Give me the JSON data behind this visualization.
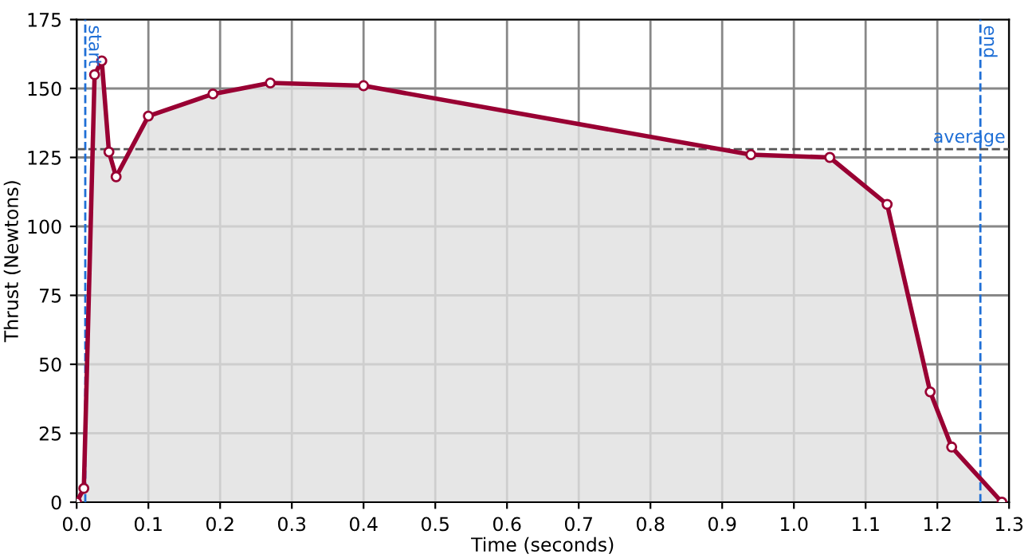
{
  "chart_data": {
    "type": "area",
    "xlabel": "Time (seconds)",
    "ylabel": "Thrust (Newtons)",
    "x": [
      0,
      0.01,
      0.025,
      0.035,
      0.045,
      0.055,
      0.1,
      0.19,
      0.27,
      0.4,
      0.94,
      1.05,
      1.13,
      1.19,
      1.22,
      1.29
    ],
    "series": [
      {
        "color": "#990033",
        "values": [
          0,
          5,
          155,
          160,
          127,
          118,
          140,
          148,
          152,
          151,
          126,
          125,
          108,
          40,
          20,
          0
        ]
      }
    ],
    "xlim": [
      0,
      1.3
    ],
    "ylim": [
      0,
      175
    ],
    "xticks": [
      {
        "value": 0,
        "label": "0.0"
      },
      0.1,
      0.2,
      0.3,
      0.4,
      0.5,
      0.6,
      0.7,
      0.8,
      0.9,
      {
        "value": 1,
        "label": "1.0"
      },
      1.1,
      1.2,
      1.3
    ],
    "yticks": [
      0,
      25,
      50,
      75,
      100,
      125,
      150,
      175
    ],
    "ref_lines": [
      {
        "axis": "x",
        "value": 0.012,
        "label": "start",
        "color": "#1f6fd6",
        "line_style": "dashed"
      },
      {
        "axis": "x",
        "value": 1.26,
        "label": "end",
        "color": "#1f6fd6",
        "line_style": "dashed"
      },
      {
        "axis": "y",
        "value": 128,
        "label": "average",
        "color": "#555555",
        "line_style": "dashed"
      }
    ],
    "grid": true,
    "marker": "circle",
    "line_style": "solid"
  }
}
